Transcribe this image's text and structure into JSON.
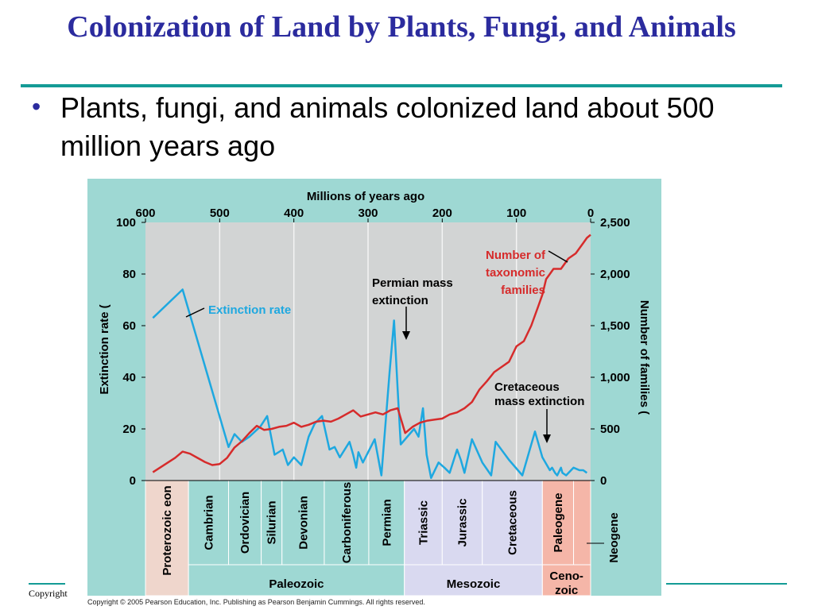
{
  "slide": {
    "title": "Colonization of Land by Plants, Fungi, and Animals",
    "bullet": "Plants, fungi, and animals colonized land about 500 million years ago",
    "copyright_left": "Copyright",
    "figure_credit": "Copyright © 2005 Pearson Education, Inc. Publishing as Pearson Benjamin Cummings. All rights reserved."
  },
  "colors": {
    "title": "#2b2b9e",
    "teal": "#149b96",
    "panel": "#9ed8d3",
    "plot_bg": "#d2d4d4",
    "extinction": "#1ea8e0",
    "families": "#d62b2b"
  },
  "chart_data": {
    "type": "line",
    "xlabel": "Millions of years ago",
    "ylabel_left": "Extinction rate (",
    "ylabel_right": "Number of families (",
    "xlim": [
      600,
      0
    ],
    "x_ticks": [
      "600",
      "500",
      "400",
      "300",
      "200",
      "100",
      "0"
    ],
    "ylim_left": [
      0,
      100
    ],
    "y_ticks_left": [
      "100",
      "80",
      "60",
      "40",
      "20",
      "0"
    ],
    "ylim_right": [
      0,
      2500
    ],
    "y_ticks_right": [
      "2,500",
      "2,000",
      "1,500",
      "1,000",
      "500",
      "0"
    ],
    "grid": "vertical",
    "series": [
      {
        "name": "Extinction rate",
        "axis": "left",
        "x": [
          590,
          550,
          488,
          480,
          470,
          460,
          445,
          436,
          426,
          415,
          408,
          400,
          390,
          380,
          372,
          362,
          352,
          345,
          338,
          325,
          320,
          316,
          313,
          307,
          291,
          282,
          271,
          265,
          260,
          256,
          238,
          232,
          226,
          221,
          215,
          205,
          197,
          190,
          180,
          175,
          170,
          160,
          146,
          134,
          128,
          110,
          92,
          75,
          65,
          55,
          52,
          48,
          45,
          40,
          38,
          33,
          23,
          15,
          10,
          5
        ],
        "y": [
          63,
          74,
          13,
          18,
          15,
          17,
          21,
          25,
          10,
          12,
          6,
          9,
          6,
          17,
          22,
          25,
          12,
          13,
          9,
          15,
          10,
          5,
          11,
          7,
          16,
          2,
          42,
          62,
          35,
          14,
          20,
          17,
          28,
          10,
          1,
          7,
          5,
          3,
          12,
          8,
          3,
          16,
          7,
          2,
          15,
          8,
          2,
          19,
          9,
          4,
          5,
          3,
          2,
          5,
          3,
          2,
          5,
          4,
          4,
          3
        ]
      },
      {
        "name": "Number of taxonomic families",
        "axis": "right",
        "x": [
          590,
          560,
          550,
          540,
          530,
          520,
          510,
          500,
          490,
          480,
          470,
          460,
          450,
          440,
          430,
          420,
          410,
          400,
          390,
          380,
          370,
          360,
          350,
          340,
          330,
          320,
          310,
          300,
          290,
          280,
          270,
          260,
          250,
          240,
          230,
          220,
          210,
          200,
          190,
          180,
          170,
          160,
          150,
          140,
          130,
          120,
          110,
          100,
          90,
          80,
          70,
          65,
          60,
          55,
          50,
          40,
          30,
          20,
          10,
          5,
          0
        ],
        "y": [
          80,
          220,
          280,
          260,
          220,
          180,
          150,
          160,
          220,
          320,
          380,
          460,
          530,
          490,
          500,
          520,
          530,
          560,
          520,
          540,
          570,
          580,
          570,
          600,
          640,
          680,
          620,
          640,
          660,
          640,
          680,
          700,
          460,
          520,
          560,
          580,
          590,
          600,
          640,
          660,
          700,
          760,
          880,
          960,
          1050,
          1100,
          1150,
          1300,
          1350,
          1500,
          1700,
          1800,
          1950,
          2000,
          2050,
          2050,
          2150,
          2200,
          2300,
          2350,
          2380
        ]
      }
    ],
    "annotations": [
      {
        "label": "Number of taxonomic families"
      },
      {
        "label": "Extinction rate"
      },
      {
        "label": "Permian mass extinction",
        "x": 251
      },
      {
        "label": "Cretaceous mass extinction",
        "x": 65
      }
    ],
    "timescale": {
      "periods": [
        {
          "name": "Proterozoic eon",
          "start": 600,
          "end": 542
        },
        {
          "name": "Cambrian",
          "start": 542,
          "end": 488
        },
        {
          "name": "Ordovician",
          "start": 488,
          "end": 444
        },
        {
          "name": "Silurian",
          "start": 444,
          "end": 416
        },
        {
          "name": "Devonian",
          "start": 416,
          "end": 359
        },
        {
          "name": "Carboniferous",
          "start": 359,
          "end": 299
        },
        {
          "name": "Permian",
          "start": 299,
          "end": 251
        },
        {
          "name": "Triassic",
          "start": 251,
          "end": 200
        },
        {
          "name": "Jurassic",
          "start": 200,
          "end": 146
        },
        {
          "name": "Cretaceous",
          "start": 146,
          "end": 65
        },
        {
          "name": "Paleogene",
          "start": 65,
          "end": 23
        },
        {
          "name": "Neogene",
          "start": 23,
          "end": 0
        }
      ],
      "eras": [
        {
          "name": "Paleozoic",
          "start": 542,
          "end": 251
        },
        {
          "name": "Mesozoic",
          "start": 251,
          "end": 65
        },
        {
          "name": "Ceno-\nzoic",
          "start": 65,
          "end": 0
        }
      ]
    }
  }
}
